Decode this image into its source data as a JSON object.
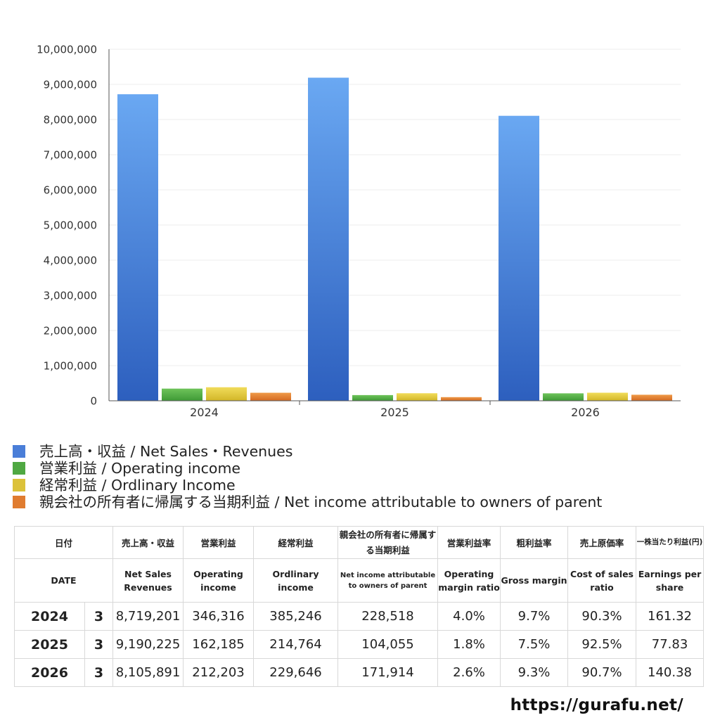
{
  "chart_data": {
    "type": "bar",
    "categories": [
      "2024",
      "2025",
      "2026"
    ],
    "ylim": [
      0,
      10000000
    ],
    "yticks": [
      "0",
      "1,000,000",
      "2,000,000",
      "3,000,000",
      "4,000,000",
      "5,000,000",
      "6,000,000",
      "7,000,000",
      "8,000,000",
      "9,000,000",
      "10,000,000"
    ],
    "grid": true,
    "legend_position": "bottom-left",
    "series": [
      {
        "name": "売上高・収益 / Net Sales・Revenues",
        "values": [
          8719201,
          9190225,
          8105891
        ],
        "color_top": "#6aa8f2",
        "color_bottom": "#2d5fbe",
        "legend_color": "#4a7ed8"
      },
      {
        "name": "営業利益 / Operating income",
        "values": [
          346316,
          162185,
          212203
        ],
        "color_top": "#6ec35a",
        "color_bottom": "#3f9a36",
        "legend_color": "#4fa842"
      },
      {
        "name": "経常利益 / Ordlinary Income",
        "values": [
          385246,
          214764,
          229646
        ],
        "color_top": "#f1dc5a",
        "color_bottom": "#d2b628",
        "legend_color": "#dcc23a"
      },
      {
        "name": "親会社の所有者に帰属する当期利益 / Net income attributable to owners of parent",
        "values": [
          228518,
          104055,
          171914
        ],
        "color_top": "#ef9a48",
        "color_bottom": "#d46a22",
        "legend_color": "#e07c30"
      }
    ]
  },
  "table": {
    "header_ja": [
      "日付",
      "売上高・収益",
      "営業利益",
      "経常利益",
      "親会社の所有者に帰属する当期利益",
      "営業利益率",
      "粗利益率",
      "売上原価率",
      "一株当たり利益(円)"
    ],
    "header_en": [
      "DATE",
      "Net Sales Revenues",
      "Operating income",
      "Ordlinary income",
      "Net income attributable to owners of parent",
      "Operating margin ratio",
      "Gross margin",
      "Cost of sales ratio",
      "Earnings per share"
    ],
    "rows": [
      {
        "year": "2024",
        "month": "3",
        "cells": [
          "8,719,201",
          "346,316",
          "385,246",
          "228,518",
          "4.0%",
          "9.7%",
          "90.3%",
          "161.32"
        ]
      },
      {
        "year": "2025",
        "month": "3",
        "cells": [
          "9,190,225",
          "162,185",
          "214,764",
          "104,055",
          "1.8%",
          "7.5%",
          "92.5%",
          "77.83"
        ]
      },
      {
        "year": "2026",
        "month": "3",
        "cells": [
          "8,105,891",
          "212,203",
          "229,646",
          "171,914",
          "2.6%",
          "9.3%",
          "90.7%",
          "140.38"
        ]
      }
    ]
  },
  "footer": {
    "url": "https://gurafu.net/"
  }
}
